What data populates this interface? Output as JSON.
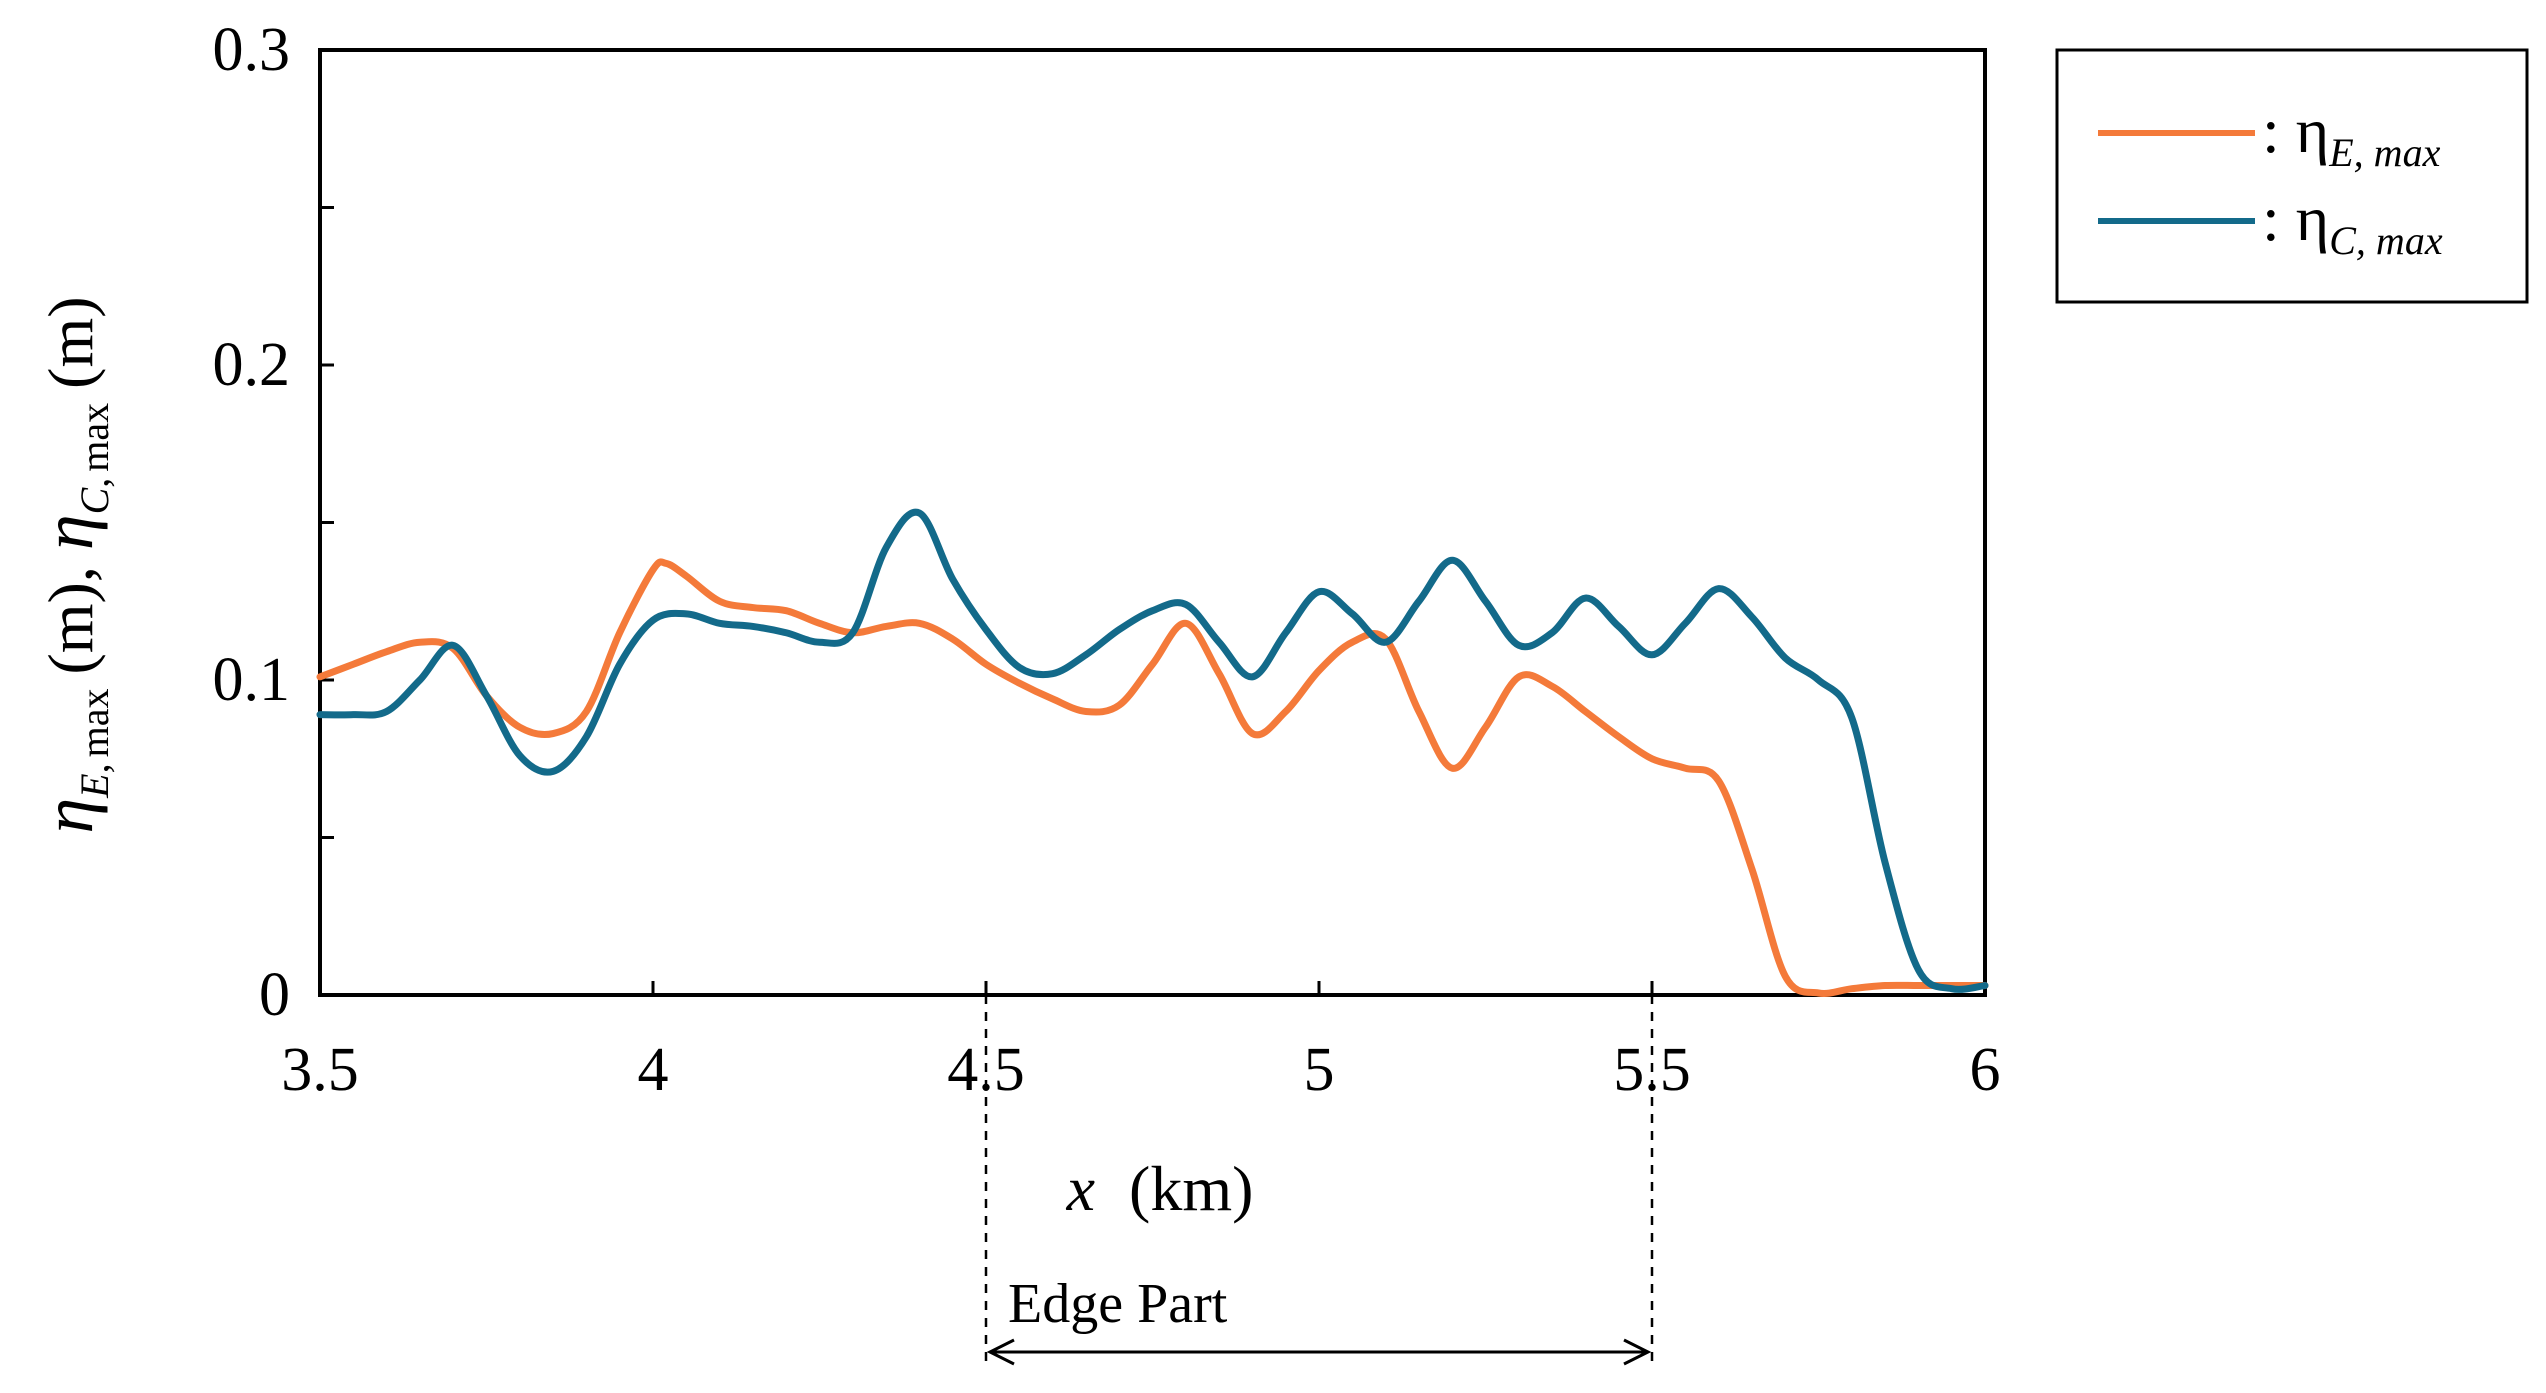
{
  "chart_data": {
    "type": "line",
    "title": "",
    "xlabel": {
      "var": "x",
      "unit": "(km)"
    },
    "ylabel": {
      "eta": "η",
      "sub_e": "E",
      "sub_c": "C",
      "sub_max": "max",
      "comma": ",",
      "unit": "(m)",
      "sep": "(m), "
    },
    "xlim": [
      3.5,
      6
    ],
    "ylim": [
      0,
      0.3
    ],
    "xticks": [
      3.5,
      4,
      4.5,
      5,
      5.5,
      6
    ],
    "xtick_labels": [
      "3.5",
      "4",
      "4.5",
      "5",
      "5.5",
      "6"
    ],
    "yticks": [
      0,
      0.1,
      0.2,
      0.3
    ],
    "ytick_labels": [
      "0",
      "0.1",
      "0.2",
      "0.3"
    ],
    "y_minor_ticks": [
      0.05,
      0.15,
      0.25
    ],
    "grid": false,
    "legend_position": "outside-top-right",
    "series": [
      {
        "id": "eta_e",
        "legend": {
          "prefix": ": η",
          "sub": "E, max"
        },
        "color": "#f47a3a",
        "x": [
          3.5,
          3.55,
          3.6,
          3.65,
          3.7,
          3.75,
          3.8,
          3.85,
          3.9,
          3.95,
          4.0,
          4.02,
          4.05,
          4.1,
          4.15,
          4.2,
          4.25,
          4.3,
          4.35,
          4.4,
          4.45,
          4.5,
          4.55,
          4.6,
          4.65,
          4.7,
          4.75,
          4.8,
          4.85,
          4.9,
          4.95,
          5.0,
          5.05,
          5.1,
          5.15,
          5.2,
          5.25,
          5.3,
          5.35,
          5.4,
          5.45,
          5.5,
          5.55,
          5.6,
          5.65,
          5.7,
          5.75,
          5.8,
          5.85,
          5.9,
          5.95,
          6.0
        ],
        "y": [
          0.101,
          0.105,
          0.109,
          0.112,
          0.11,
          0.095,
          0.085,
          0.083,
          0.09,
          0.115,
          0.135,
          0.137,
          0.133,
          0.125,
          0.123,
          0.122,
          0.118,
          0.115,
          0.117,
          0.118,
          0.113,
          0.105,
          0.099,
          0.094,
          0.09,
          0.092,
          0.105,
          0.118,
          0.102,
          0.083,
          0.09,
          0.103,
          0.112,
          0.113,
          0.09,
          0.072,
          0.085,
          0.101,
          0.098,
          0.09,
          0.082,
          0.075,
          0.072,
          0.068,
          0.04,
          0.006,
          0.0,
          0.002,
          0.003,
          0.003,
          0.003,
          0.003
        ]
      },
      {
        "id": "eta_c",
        "legend": {
          "prefix": ": η",
          "sub": "C, max"
        },
        "color": "#136a8a",
        "x": [
          3.5,
          3.55,
          3.6,
          3.65,
          3.7,
          3.75,
          3.8,
          3.85,
          3.9,
          3.95,
          4.0,
          4.05,
          4.1,
          4.15,
          4.2,
          4.25,
          4.3,
          4.35,
          4.4,
          4.45,
          4.5,
          4.55,
          4.6,
          4.65,
          4.7,
          4.75,
          4.8,
          4.85,
          4.9,
          4.95,
          5.0,
          5.05,
          5.1,
          5.15,
          5.2,
          5.25,
          5.3,
          5.35,
          5.4,
          5.45,
          5.5,
          5.55,
          5.6,
          5.65,
          5.7,
          5.75,
          5.8,
          5.85,
          5.9,
          5.95,
          6.0
        ],
        "y": [
          0.089,
          0.089,
          0.09,
          0.1,
          0.111,
          0.095,
          0.076,
          0.071,
          0.082,
          0.105,
          0.119,
          0.121,
          0.118,
          0.117,
          0.115,
          0.112,
          0.115,
          0.142,
          0.153,
          0.132,
          0.116,
          0.104,
          0.102,
          0.108,
          0.116,
          0.122,
          0.124,
          0.112,
          0.101,
          0.115,
          0.128,
          0.121,
          0.112,
          0.125,
          0.138,
          0.125,
          0.111,
          0.115,
          0.126,
          0.117,
          0.108,
          0.118,
          0.129,
          0.12,
          0.107,
          0.1,
          0.088,
          0.042,
          0.008,
          0.002,
          0.003
        ]
      }
    ],
    "annotation": {
      "label": "Edge Part",
      "x_start": 4.5,
      "x_end": 5.5
    }
  }
}
